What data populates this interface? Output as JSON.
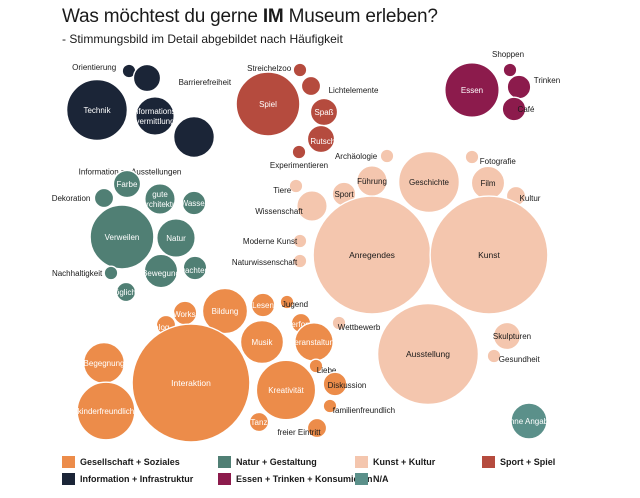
{
  "title_pre": "Was möchtest du gerne ",
  "title_bold": "IM",
  "title_post": " Museum erleben?",
  "subtitle": "- Stimmungsbild im Detail abgebildet nach Häufigkeit",
  "chart_data": {
    "type": "bubble",
    "title": "Was möchtest du gerne IM Museum erleben?",
    "subtitle": "- Stimmungsbild im Detail abgebildet nach Häufigkeit",
    "categories": [
      {
        "name": "Gesellschaft + Soziales",
        "color": "#ec8c4a"
      },
      {
        "name": "Information + Infrastruktur",
        "color": "#1b2537"
      },
      {
        "name": "Natur + Gestaltung",
        "color": "#507f74"
      },
      {
        "name": "Essen + Trinken + Konsumieren",
        "color": "#8c1b4c"
      },
      {
        "name": "Kunst + Kultur",
        "color": "#f4c6ae"
      },
      {
        "name": "N/A",
        "color": "#5b908a"
      },
      {
        "name": "Sport + Spiel",
        "color": "#b54b3e"
      }
    ],
    "bubbles": [
      {
        "label": "Orientierung",
        "category": "Information + Infrastruktur",
        "size": 1
      },
      {
        "label": "Barrierefreiheit",
        "category": "Information + Infrastruktur",
        "size": 4
      },
      {
        "label": "Technik",
        "category": "Information + Infrastruktur",
        "size": 20
      },
      {
        "label": "Informations-vermittlung",
        "category": "Information + Infrastruktur",
        "size": 8
      },
      {
        "label": "Information zu Ausstellungen",
        "category": "Information + Infrastruktur",
        "size": 9
      },
      {
        "label": "Streichelzoo",
        "category": "Sport + Spiel",
        "size": 1
      },
      {
        "label": "Lichtelemente",
        "category": "Sport + Spiel",
        "size": 2
      },
      {
        "label": "Spiel",
        "category": "Sport + Spiel",
        "size": 22
      },
      {
        "label": "Spaß",
        "category": "Sport + Spiel",
        "size": 4
      },
      {
        "label": "Rutsche",
        "category": "Sport + Spiel",
        "size": 4
      },
      {
        "label": "Experimentieren",
        "category": "Sport + Spiel",
        "size": 1
      },
      {
        "label": "Shoppen",
        "category": "Essen + Trinken + Konsumieren",
        "size": 1
      },
      {
        "label": "Trinken",
        "category": "Essen + Trinken + Konsumieren",
        "size": 3
      },
      {
        "label": "Essen",
        "category": "Essen + Trinken + Konsumieren",
        "size": 16
      },
      {
        "label": "Café",
        "category": "Essen + Trinken + Konsumieren",
        "size": 3
      },
      {
        "label": "Farbe",
        "category": "Natur + Gestaltung",
        "size": 4
      },
      {
        "label": "Dekoration",
        "category": "Natur + Gestaltung",
        "size": 2
      },
      {
        "label": "gute Architektur",
        "category": "Natur + Gestaltung",
        "size": 5
      },
      {
        "label": "Wasser",
        "category": "Natur + Gestaltung",
        "size": 3
      },
      {
        "label": "Verweilen",
        "category": "Natur + Gestaltung",
        "size": 22
      },
      {
        "label": "Natur",
        "category": "Natur + Gestaltung",
        "size": 8
      },
      {
        "label": "Nachhaltigkeit",
        "category": "Natur + Gestaltung",
        "size": 1
      },
      {
        "label": "Bewegung",
        "category": "Natur + Gestaltung",
        "size": 6
      },
      {
        "label": "Dachterrasse",
        "category": "Natur + Gestaltung",
        "size": 3
      },
      {
        "label": "Sitzmöglichkeiten",
        "category": "Natur + Gestaltung",
        "size": 2
      },
      {
        "label": "Archäologie",
        "category": "Kunst + Kultur",
        "size": 1
      },
      {
        "label": "Fotografie",
        "category": "Kunst + Kultur",
        "size": 1
      },
      {
        "label": "Führung",
        "category": "Kunst + Kultur",
        "size": 5
      },
      {
        "label": "Geschichte",
        "category": "Kunst + Kultur",
        "size": 20
      },
      {
        "label": "Film",
        "category": "Kunst + Kultur",
        "size": 6
      },
      {
        "label": "Tiere",
        "category": "Kunst + Kultur",
        "size": 1
      },
      {
        "label": "Sport",
        "category": "Kunst + Kultur",
        "size": 3
      },
      {
        "label": "Kultur",
        "category": "Kunst + Kultur",
        "size": 2
      },
      {
        "label": "Wissenschaft",
        "category": "Kunst + Kultur",
        "size": 5
      },
      {
        "label": "Moderne Kunst",
        "category": "Kunst + Kultur",
        "size": 1
      },
      {
        "label": "Anregendes",
        "category": "Kunst + Kultur",
        "size": 75
      },
      {
        "label": "Kunst",
        "category": "Kunst + Kultur",
        "size": 75
      },
      {
        "label": "Naturwissenschaft",
        "category": "Kunst + Kultur",
        "size": 1
      },
      {
        "label": "Wettbewerb",
        "category": "Kunst + Kultur",
        "size": 1
      },
      {
        "label": "Ausstellung",
        "category": "Kunst + Kultur",
        "size": 55
      },
      {
        "label": "Skulpturen",
        "category": "Kunst + Kultur",
        "size": 4
      },
      {
        "label": "Gesundheit",
        "category": "Kunst + Kultur",
        "size": 1
      },
      {
        "label": "Workshop",
        "category": "Gesellschaft + Soziales",
        "size": 3
      },
      {
        "label": "Dialog",
        "category": "Gesellschaft + Soziales",
        "size": 2
      },
      {
        "label": "Bildung",
        "category": "Gesellschaft + Soziales",
        "size": 11
      },
      {
        "label": "Lesen",
        "category": "Gesellschaft + Soziales",
        "size": 3
      },
      {
        "label": "Jugend",
        "category": "Gesellschaft + Soziales",
        "size": 1
      },
      {
        "label": "Performance",
        "category": "Gesellschaft + Soziales",
        "size": 2
      },
      {
        "label": "Musik",
        "category": "Gesellschaft + Soziales",
        "size": 10
      },
      {
        "label": "Veranstaltung",
        "category": "Gesellschaft + Soziales",
        "size": 8
      },
      {
        "label": "Begegnung",
        "category": "Gesellschaft + Soziales",
        "size": 9
      },
      {
        "label": "Interaktion",
        "category": "Gesellschaft + Soziales",
        "size": 75
      },
      {
        "label": "Liebe",
        "category": "Gesellschaft + Soziales",
        "size": 1
      },
      {
        "label": "Kreativität",
        "category": "Gesellschaft + Soziales",
        "size": 19
      },
      {
        "label": "Diskussion",
        "category": "Gesellschaft + Soziales",
        "size": 3
      },
      {
        "label": "kinderfreundlich",
        "category": "Gesellschaft + Soziales",
        "size": 18
      },
      {
        "label": "familienfreundlich",
        "category": "Gesellschaft + Soziales",
        "size": 1
      },
      {
        "label": "Tanz",
        "category": "Gesellschaft + Soziales",
        "size": 2
      },
      {
        "label": "freier Eintritt",
        "category": "Gesellschaft + Soziales",
        "size": 2
      },
      {
        "label": "ohne Angabe",
        "category": "N/A",
        "size": 7
      }
    ],
    "legend_position": "bottom"
  }
}
